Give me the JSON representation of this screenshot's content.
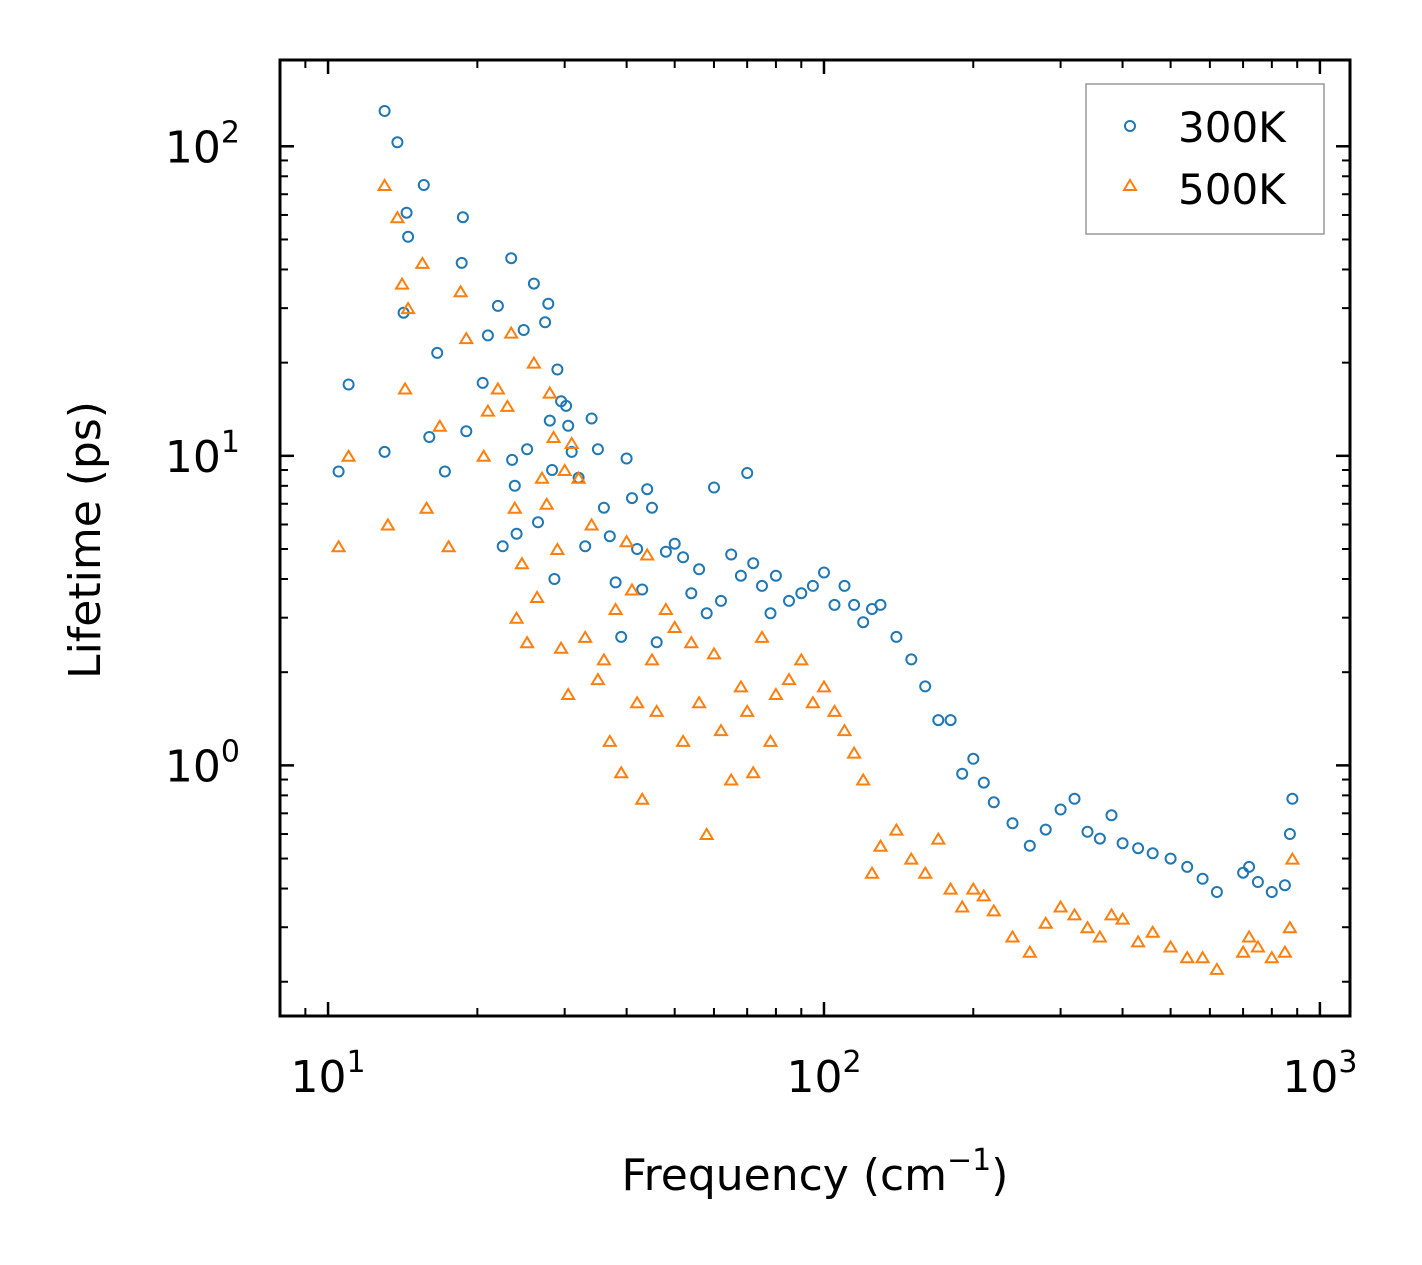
{
  "chart_data": {
    "type": "scatter",
    "title": "",
    "xlabel": "Frequency (cm",
    "xlabel_sup": "−1",
    "xlabel_tail": ")",
    "ylabel": "Lifetime (ps)",
    "xscale": "log",
    "yscale": "log",
    "xlim": [
      8.0,
      1150
    ],
    "ylim": [
      0.155,
      190
    ],
    "x_ticks": [
      {
        "value": 10,
        "base": "10",
        "exp": "1"
      },
      {
        "value": 100,
        "base": "10",
        "exp": "2"
      },
      {
        "value": 1000,
        "base": "10",
        "exp": "3"
      }
    ],
    "y_ticks": [
      {
        "value": 1,
        "base": "10",
        "exp": "0"
      },
      {
        "value": 10,
        "base": "10",
        "exp": "1"
      },
      {
        "value": 100,
        "base": "10",
        "exp": "2"
      }
    ],
    "legend": {
      "position": "top-right"
    },
    "series": [
      {
        "name": "300K",
        "marker": "circle",
        "color": "#1f77b4",
        "x": [
          10.5,
          11.0,
          13.0,
          13.0,
          13.8,
          14.2,
          14.4,
          14.5,
          15.6,
          16.0,
          16.6,
          17.2,
          18.6,
          18.7,
          19.0,
          20.5,
          21.0,
          22.0,
          22.5,
          23.4,
          23.5,
          23.8,
          24.0,
          24.8,
          25.2,
          26.0,
          26.5,
          27.4,
          27.8,
          28.0,
          28.3,
          28.6,
          29.0,
          29.5,
          30.2,
          30.5,
          31.0,
          32.0,
          33.0,
          34.0,
          35.0,
          36.0,
          37.0,
          38.0,
          39.0,
          40.0,
          41.0,
          42.0,
          43.0,
          44.0,
          45.0,
          46.0,
          48.0,
          50.0,
          52.0,
          54.0,
          56.0,
          58.0,
          60.0,
          62.0,
          65.0,
          68.0,
          70.0,
          72.0,
          75.0,
          78.0,
          80.0,
          85.0,
          90.0,
          95.0,
          100.0,
          105.0,
          110.0,
          115.0,
          120.0,
          125.0,
          130.0,
          140.0,
          150.0,
          160.0,
          170.0,
          180.0,
          190.0,
          200.0,
          210.0,
          220.0,
          240.0,
          260.0,
          280.0,
          300.0,
          320.0,
          340.0,
          360.0,
          380.0,
          400.0,
          430.0,
          460.0,
          500.0,
          540.0,
          580.0,
          620.0,
          700.0,
          720.0,
          750.0,
          800.0,
          850.0,
          870.0,
          880.0
        ],
        "y": [
          8.9,
          17.0,
          130.0,
          10.3,
          103.0,
          29.0,
          61.0,
          51.0,
          75.0,
          11.5,
          21.5,
          8.9,
          42.0,
          59.0,
          12.0,
          17.2,
          24.5,
          30.5,
          5.1,
          43.5,
          9.7,
          8.0,
          5.6,
          25.5,
          10.5,
          36.0,
          6.1,
          27.0,
          31.0,
          13.0,
          9.0,
          4.0,
          19.0,
          15.0,
          14.5,
          12.5,
          10.3,
          8.5,
          5.1,
          13.2,
          10.5,
          6.8,
          5.5,
          3.9,
          2.6,
          9.8,
          7.3,
          5.0,
          3.7,
          7.8,
          6.8,
          2.5,
          4.9,
          5.2,
          4.7,
          3.6,
          4.3,
          3.1,
          7.9,
          3.4,
          4.8,
          4.1,
          8.8,
          4.5,
          3.8,
          3.1,
          4.1,
          3.4,
          3.6,
          3.8,
          4.2,
          3.3,
          3.8,
          3.3,
          2.9,
          3.2,
          3.3,
          2.6,
          2.2,
          1.8,
          1.4,
          1.4,
          0.94,
          1.05,
          0.88,
          0.76,
          0.65,
          0.55,
          0.62,
          0.72,
          0.78,
          0.61,
          0.58,
          0.69,
          0.56,
          0.54,
          0.52,
          0.5,
          0.47,
          0.43,
          0.39,
          0.45,
          0.47,
          0.42,
          0.39,
          0.41,
          0.6,
          0.78
        ]
      },
      {
        "name": "500K",
        "marker": "triangle",
        "color": "#ff7f0e",
        "x": [
          10.5,
          11.0,
          13.0,
          13.2,
          13.8,
          14.1,
          14.3,
          14.5,
          15.5,
          15.8,
          16.8,
          17.5,
          18.5,
          19.0,
          20.6,
          21.0,
          22.0,
          23.0,
          23.4,
          23.8,
          24.0,
          24.6,
          25.2,
          26.0,
          26.4,
          27.0,
          27.6,
          28.0,
          28.5,
          29.0,
          29.5,
          30.0,
          30.5,
          31.0,
          32.0,
          33.0,
          34.0,
          35.0,
          36.0,
          37.0,
          38.0,
          39.0,
          40.0,
          41.0,
          42.0,
          43.0,
          44.0,
          45.0,
          46.0,
          48.0,
          50.0,
          52.0,
          54.0,
          56.0,
          58.0,
          60.0,
          62.0,
          65.0,
          68.0,
          70.0,
          72.0,
          75.0,
          78.0,
          80.0,
          85.0,
          90.0,
          95.0,
          100.0,
          105.0,
          110.0,
          115.0,
          120.0,
          125.0,
          130.0,
          140.0,
          150.0,
          160.0,
          170.0,
          180.0,
          190.0,
          200.0,
          210.0,
          220.0,
          240.0,
          260.0,
          280.0,
          300.0,
          320.0,
          340.0,
          360.0,
          380.0,
          400.0,
          430.0,
          460.0,
          500.0,
          540.0,
          580.0,
          620.0,
          700.0,
          720.0,
          750.0,
          800.0,
          850.0,
          870.0,
          880.0
        ],
        "y": [
          5.1,
          10.0,
          75.0,
          6.0,
          59.0,
          36.0,
          16.5,
          30.0,
          42.0,
          6.8,
          12.5,
          5.1,
          34.0,
          24.0,
          10.0,
          14.0,
          16.5,
          14.5,
          25.0,
          6.8,
          3.0,
          4.5,
          2.5,
          20.0,
          3.5,
          8.5,
          7.0,
          16.0,
          11.5,
          5.0,
          2.4,
          9.0,
          1.7,
          11.0,
          8.5,
          2.6,
          6.0,
          1.9,
          2.2,
          1.2,
          3.2,
          0.95,
          5.3,
          3.7,
          1.6,
          0.78,
          4.8,
          2.2,
          1.5,
          3.2,
          2.8,
          1.2,
          2.5,
          1.6,
          0.6,
          2.3,
          1.3,
          0.9,
          1.8,
          1.5,
          0.95,
          2.6,
          1.2,
          1.7,
          1.9,
          2.2,
          1.6,
          1.8,
          1.5,
          1.3,
          1.1,
          0.9,
          0.45,
          0.55,
          0.62,
          0.5,
          0.45,
          0.58,
          0.4,
          0.35,
          0.4,
          0.38,
          0.34,
          0.28,
          0.25,
          0.31,
          0.35,
          0.33,
          0.3,
          0.28,
          0.33,
          0.32,
          0.27,
          0.29,
          0.26,
          0.24,
          0.24,
          0.22,
          0.25,
          0.28,
          0.26,
          0.24,
          0.25,
          0.3,
          0.5
        ]
      }
    ]
  }
}
